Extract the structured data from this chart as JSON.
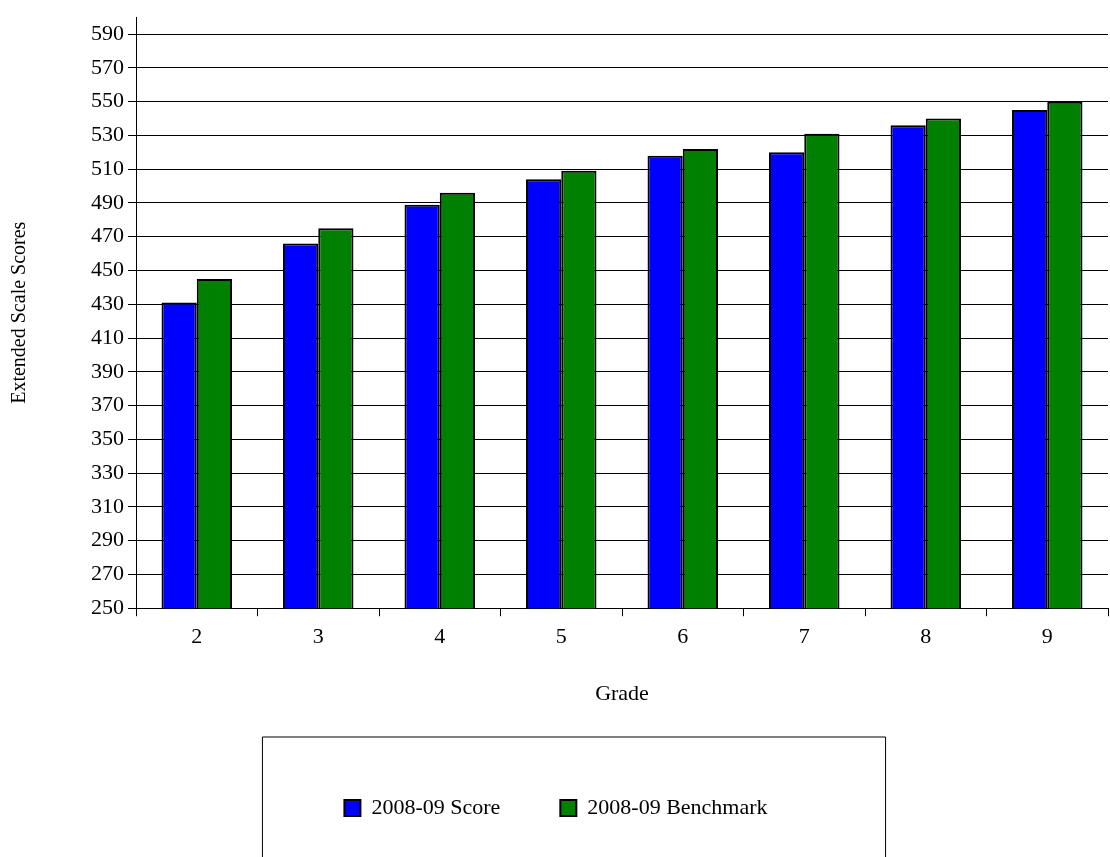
{
  "chart_data": {
    "type": "bar",
    "xlabel": "Grade",
    "ylabel": "Extended Scale Scores",
    "categories": [
      "2",
      "3",
      "4",
      "5",
      "6",
      "7",
      "8",
      "9"
    ],
    "series": [
      {
        "name": "2008-09 Score",
        "color": "#0000ff",
        "values": [
          431,
          466,
          489,
          504,
          518,
          520,
          536,
          545
        ]
      },
      {
        "name": "2008-09 Benchmark",
        "color": "#008000",
        "values": [
          445,
          475,
          496,
          509,
          522,
          531,
          540,
          550
        ]
      }
    ],
    "ylim": [
      250,
      600
    ],
    "yticks": [
      250,
      270,
      290,
      310,
      330,
      350,
      370,
      390,
      410,
      430,
      450,
      470,
      490,
      510,
      530,
      550,
      570,
      590
    ],
    "grid": "y",
    "legend": "bottom"
  }
}
